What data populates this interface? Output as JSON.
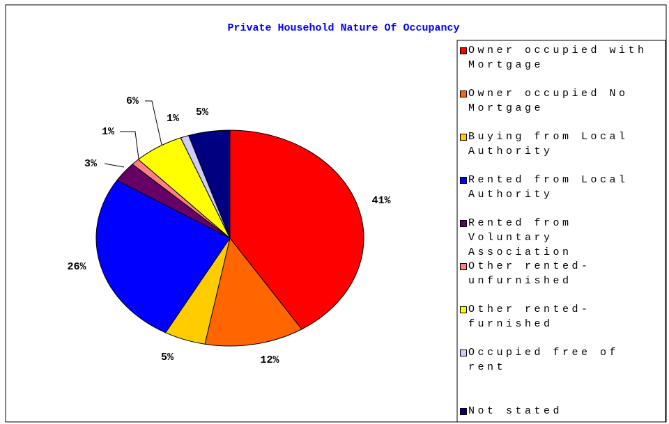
{
  "chart_data": {
    "type": "pie",
    "title": "Private Household Nature Of Occupancy",
    "categories": [
      "Owner occupied with Mortgage",
      "Owner occupied No Mortgage",
      "Buying from Local Authority",
      "Rented from Local Authority",
      "Rented from Voluntary Association",
      "Other rented-unfurnished",
      "Other rented-furnished",
      "Occupied free of rent",
      "Not stated"
    ],
    "values": [
      41,
      12,
      5,
      26,
      3,
      1,
      6,
      1,
      5
    ],
    "value_labels": [
      "41%",
      "12%",
      "5%",
      "26%",
      "3%",
      "1%",
      "6%",
      "1%",
      "5%"
    ],
    "colors": [
      "#ff0000",
      "#ff6600",
      "#ffcc00",
      "#0000ff",
      "#660066",
      "#ff8080",
      "#ffff00",
      "#ccccff",
      "#000080"
    ],
    "legend": "right"
  }
}
